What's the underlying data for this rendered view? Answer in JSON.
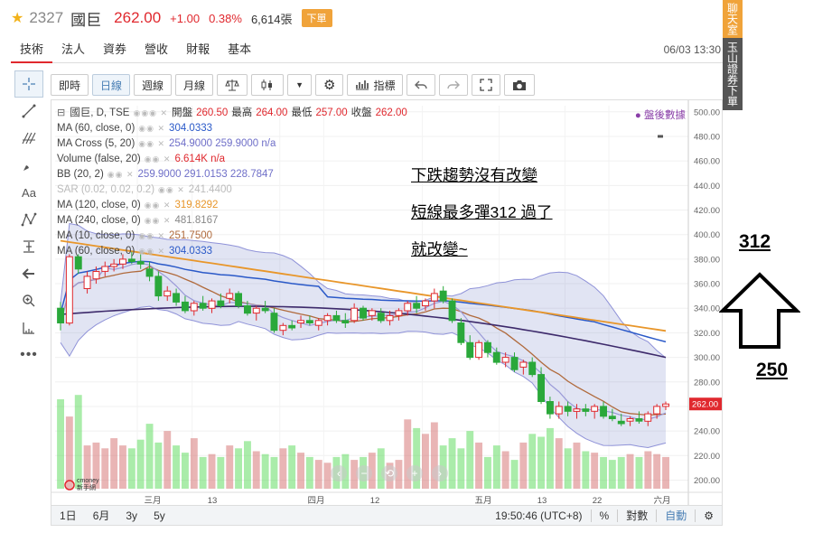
{
  "quote": {
    "code": "2327",
    "name": "國巨",
    "price": "262.00",
    "change": "+1.00",
    "change_pct": "0.38%",
    "volume": "6,614張",
    "order_label": "下單"
  },
  "nav": {
    "tabs": [
      "技術",
      "法人",
      "資券",
      "營收",
      "財報",
      "基本"
    ],
    "active_tab": "技術",
    "datetime": "06/03 13:30"
  },
  "side": {
    "chat": "聊天室",
    "broker": "玉山證券下單"
  },
  "toolbar": {
    "buttons": [
      "即時",
      "日線",
      "週線",
      "月線",
      "⚖",
      "▼",
      "⚙",
      "指標",
      "↶",
      "↷",
      "⛶",
      "📷"
    ],
    "active": "日線",
    "indicator_label": "指標"
  },
  "legend": {
    "symbol": "國巨, D, TSE",
    "open_label": "開盤",
    "open": "260.50",
    "high_label": "最高",
    "high": "264.00",
    "low_label": "最低",
    "low": "257.00",
    "close_label": "收盤",
    "close": "262.00",
    "rows": [
      {
        "label": "MA (60, close, 0)",
        "value": "304.0333",
        "color": "blue"
      },
      {
        "label": "MA Cross (5, 20)",
        "value": "254.9000  259.9000  n/a",
        "color": "purple"
      },
      {
        "label": "Volume (false, 20)",
        "value": "6.614K  n/a",
        "color": "red"
      },
      {
        "label": "BB (20, 2)",
        "value": "259.9000  291.0153  228.7847",
        "color": "purple"
      },
      {
        "label": "SAR (0.02, 0.02, 0.2)",
        "value": "241.4400",
        "color": "gray",
        "faded": true
      },
      {
        "label": "MA (120, close, 0)",
        "value": "319.8292",
        "color": "orange"
      },
      {
        "label": "MA (240, close, 0)",
        "value": "481.8167",
        "color": "gray"
      },
      {
        "label": "MA (10, close, 0)",
        "value": "251.7500",
        "color": "brown"
      },
      {
        "label": "MA (60, close, 0)",
        "value": "304.0333",
        "color": "blue"
      }
    ],
    "after_hours": "● 盤後數據"
  },
  "annotations": {
    "line1": "下跌趨勢沒有改變",
    "line2": "短線最多彈312 過了",
    "line3": "就改變~",
    "target_high": "312",
    "target_low": "250"
  },
  "chart_data": {
    "type": "candlestick",
    "y_ticks": [
      "500.00",
      "480.00",
      "460.00",
      "440.00",
      "420.00",
      "400.00",
      "380.00",
      "360.00",
      "340.00",
      "320.00",
      "300.00",
      "280.00",
      "260.00",
      "240.00",
      "220.00",
      "200.00"
    ],
    "ylim": [
      193,
      505
    ],
    "current_price_label": "262.00",
    "x_labels": [
      "三月",
      "13",
      "四月",
      "12",
      "五月",
      "13",
      "22",
      "六月"
    ],
    "candles": [
      [
        340,
        345,
        322,
        328
      ],
      [
        328,
        384,
        326,
        382
      ],
      [
        382,
        384,
        368,
        372
      ],
      [
        356,
        370,
        352,
        366
      ],
      [
        364,
        374,
        360,
        370
      ],
      [
        370,
        378,
        366,
        374
      ],
      [
        374,
        380,
        370,
        376
      ],
      [
        376,
        384,
        372,
        380
      ],
      [
        380,
        386,
        376,
        378
      ],
      [
        378,
        384,
        372,
        376
      ],
      [
        372,
        378,
        362,
        366
      ],
      [
        366,
        370,
        346,
        350
      ],
      [
        350,
        358,
        346,
        354
      ],
      [
        352,
        356,
        342,
        345
      ],
      [
        345,
        350,
        336,
        338
      ],
      [
        338,
        346,
        334,
        344
      ],
      [
        344,
        350,
        338,
        340
      ],
      [
        340,
        348,
        336,
        346
      ],
      [
        346,
        352,
        340,
        342
      ],
      [
        348,
        356,
        344,
        352
      ],
      [
        352,
        354,
        340,
        342
      ],
      [
        342,
        346,
        334,
        336
      ],
      [
        336,
        342,
        330,
        340
      ],
      [
        340,
        346,
        336,
        338
      ],
      [
        336,
        340,
        320,
        322
      ],
      [
        322,
        328,
        318,
        326
      ],
      [
        326,
        330,
        322,
        324
      ],
      [
        328,
        334,
        324,
        330
      ],
      [
        330,
        334,
        326,
        328
      ],
      [
        326,
        332,
        322,
        330
      ],
      [
        330,
        336,
        326,
        334
      ],
      [
        334,
        338,
        328,
        330
      ],
      [
        330,
        336,
        324,
        328
      ],
      [
        330,
        344,
        328,
        340
      ],
      [
        340,
        342,
        330,
        332
      ],
      [
        334,
        340,
        330,
        338
      ],
      [
        336,
        340,
        328,
        330
      ],
      [
        330,
        338,
        326,
        334
      ],
      [
        334,
        340,
        330,
        338
      ],
      [
        338,
        346,
        334,
        344
      ],
      [
        344,
        350,
        336,
        340
      ],
      [
        342,
        348,
        338,
        346
      ],
      [
        346,
        356,
        340,
        352
      ],
      [
        354,
        358,
        344,
        346
      ],
      [
        346,
        348,
        328,
        330
      ],
      [
        328,
        332,
        310,
        312
      ],
      [
        312,
        318,
        298,
        300
      ],
      [
        300,
        314,
        298,
        312
      ],
      [
        312,
        314,
        300,
        304
      ],
      [
        304,
        308,
        294,
        296
      ],
      [
        296,
        304,
        292,
        300
      ],
      [
        300,
        304,
        288,
        290
      ],
      [
        292,
        298,
        286,
        296
      ],
      [
        296,
        300,
        284,
        286
      ],
      [
        286,
        292,
        262,
        264
      ],
      [
        264,
        268,
        250,
        254
      ],
      [
        254,
        264,
        250,
        260
      ],
      [
        260,
        264,
        252,
        256
      ],
      [
        256,
        262,
        250,
        258
      ],
      [
        258,
        262,
        252,
        256
      ],
      [
        256,
        262,
        250,
        260
      ],
      [
        260,
        264,
        250,
        252
      ],
      [
        252,
        258,
        248,
        250
      ],
      [
        248,
        254,
        244,
        246
      ],
      [
        248,
        252,
        244,
        250
      ],
      [
        250,
        256,
        246,
        248
      ],
      [
        248,
        256,
        244,
        254
      ],
      [
        254,
        262,
        250,
        260
      ],
      [
        260,
        264,
        257,
        262
      ]
    ],
    "volumes": [
      62,
      50,
      65,
      30,
      32,
      28,
      35,
      30,
      28,
      34,
      45,
      32,
      40,
      30,
      25,
      35,
      22,
      24,
      22,
      30,
      28,
      33,
      26,
      24,
      22,
      28,
      30,
      25,
      22,
      20,
      18,
      22,
      24,
      20,
      22,
      25,
      28,
      18,
      20,
      48,
      42,
      38,
      46,
      30,
      35,
      28,
      40,
      32,
      22,
      30,
      26,
      20,
      32,
      38,
      36,
      42,
      35,
      28,
      32,
      26,
      25,
      22,
      20,
      22,
      24,
      22,
      26,
      24,
      22
    ]
  },
  "bottom_bar": {
    "ranges": [
      "1日",
      "6月",
      "3y",
      "5y"
    ],
    "time": "19:50:46 (UTC+8)",
    "pct": "%",
    "log": "對數",
    "auto": "自動",
    "gear": "⚙"
  }
}
